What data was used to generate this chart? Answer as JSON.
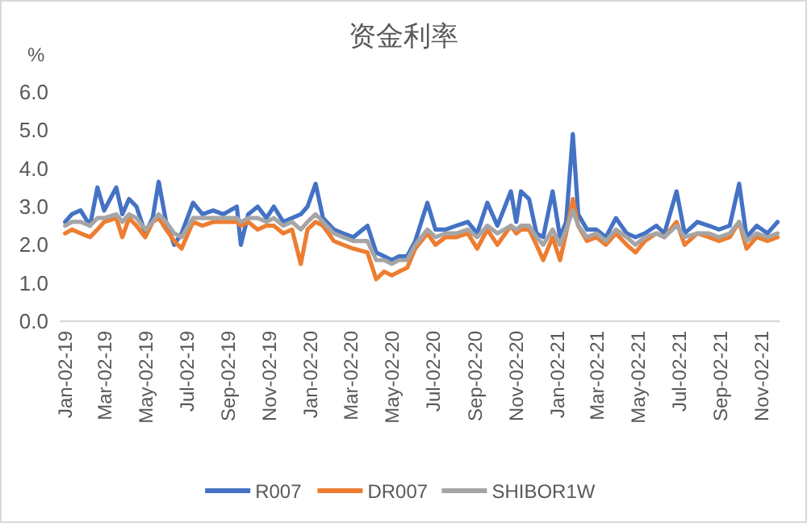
{
  "chart_data": {
    "type": "line",
    "title": "资金利率",
    "ylabel": "%",
    "x": [
      "2019-01-02",
      "2019-01-12",
      "2019-01-25",
      "2019-02-08",
      "2019-02-19",
      "2019-03-01",
      "2019-03-19",
      "2019-03-28",
      "2019-04-07",
      "2019-04-18",
      "2019-05-01",
      "2019-05-12",
      "2019-05-21",
      "2019-06-01",
      "2019-06-13",
      "2019-06-24",
      "2019-07-11",
      "2019-07-25",
      "2019-08-10",
      "2019-08-25",
      "2019-09-14",
      "2019-09-20",
      "2019-10-01",
      "2019-10-15",
      "2019-10-28",
      "2019-11-08",
      "2019-11-22",
      "2019-12-05",
      "2019-12-18",
      "2019-12-28",
      "2020-01-09",
      "2020-01-20",
      "2020-02-05",
      "2020-02-19",
      "2020-03-05",
      "2020-03-26",
      "2020-04-08",
      "2020-04-20",
      "2020-05-01",
      "2020-05-12",
      "2020-05-24",
      "2020-06-05",
      "2020-06-23",
      "2020-07-05",
      "2020-07-20",
      "2020-08-05",
      "2020-08-22",
      "2020-09-05",
      "2020-09-20",
      "2020-10-05",
      "2020-10-25",
      "2020-11-02",
      "2020-11-09",
      "2020-11-21",
      "2020-12-02",
      "2020-12-12",
      "2020-12-26",
      "2021-01-06",
      "2021-01-15",
      "2021-01-25",
      "2021-02-02",
      "2021-02-15",
      "2021-03-01",
      "2021-03-15",
      "2021-03-30",
      "2021-04-15",
      "2021-04-28",
      "2021-05-12",
      "2021-05-29",
      "2021-06-10",
      "2021-06-28",
      "2021-07-10",
      "2021-07-29",
      "2021-08-15",
      "2021-08-30",
      "2021-09-15",
      "2021-09-29",
      "2021-10-10",
      "2021-10-25",
      "2021-11-10",
      "2021-11-25"
    ],
    "series": [
      {
        "name": "R007",
        "color": "#4472c4",
        "values": [
          2.6,
          2.8,
          2.9,
          2.5,
          3.5,
          2.9,
          3.5,
          2.8,
          3.2,
          3.0,
          2.3,
          2.7,
          3.65,
          2.6,
          2.0,
          2.3,
          3.1,
          2.8,
          2.9,
          2.8,
          3.0,
          2.0,
          2.8,
          3.0,
          2.7,
          3.0,
          2.6,
          2.7,
          2.8,
          3.0,
          3.6,
          2.7,
          2.4,
          2.3,
          2.2,
          2.5,
          1.8,
          1.7,
          1.6,
          1.7,
          1.7,
          2.1,
          3.1,
          2.4,
          2.4,
          2.5,
          2.6,
          2.3,
          3.1,
          2.5,
          3.4,
          2.6,
          3.4,
          3.2,
          2.3,
          2.2,
          3.4,
          2.2,
          2.6,
          4.9,
          2.8,
          2.4,
          2.4,
          2.2,
          2.7,
          2.3,
          2.2,
          2.3,
          2.5,
          2.3,
          3.4,
          2.3,
          2.6,
          2.5,
          2.4,
          2.5,
          3.6,
          2.2,
          2.5,
          2.3,
          2.6
        ]
      },
      {
        "name": "DR007",
        "color": "#ed7d31",
        "values": [
          2.3,
          2.4,
          2.3,
          2.2,
          2.4,
          2.6,
          2.7,
          2.2,
          2.7,
          2.5,
          2.2,
          2.6,
          2.7,
          2.4,
          2.1,
          1.9,
          2.6,
          2.5,
          2.6,
          2.6,
          2.6,
          2.5,
          2.6,
          2.4,
          2.5,
          2.5,
          2.3,
          2.4,
          1.5,
          2.4,
          2.6,
          2.5,
          2.1,
          2.0,
          1.9,
          1.8,
          1.1,
          1.3,
          1.2,
          1.3,
          1.4,
          1.9,
          2.3,
          2.0,
          2.2,
          2.2,
          2.3,
          1.9,
          2.4,
          2.0,
          2.5,
          2.3,
          2.4,
          2.4,
          2.0,
          1.6,
          2.2,
          1.6,
          2.3,
          3.2,
          2.5,
          2.1,
          2.2,
          2.0,
          2.3,
          2.0,
          1.8,
          2.1,
          2.3,
          2.2,
          2.6,
          2.0,
          2.3,
          2.2,
          2.1,
          2.2,
          2.6,
          1.9,
          2.2,
          2.1,
          2.2
        ]
      },
      {
        "name": "SHIBOR1W",
        "color": "#a5a5a5",
        "values": [
          2.5,
          2.6,
          2.6,
          2.5,
          2.7,
          2.7,
          2.8,
          2.6,
          2.8,
          2.7,
          2.4,
          2.6,
          2.8,
          2.6,
          2.3,
          2.2,
          2.7,
          2.7,
          2.7,
          2.7,
          2.7,
          2.6,
          2.7,
          2.7,
          2.6,
          2.7,
          2.5,
          2.6,
          2.4,
          2.6,
          2.8,
          2.6,
          2.3,
          2.2,
          2.1,
          2.1,
          1.6,
          1.6,
          1.5,
          1.6,
          1.6,
          2.0,
          2.4,
          2.2,
          2.3,
          2.3,
          2.4,
          2.2,
          2.5,
          2.3,
          2.5,
          2.4,
          2.5,
          2.5,
          2.2,
          2.0,
          2.4,
          2.0,
          2.4,
          2.9,
          2.5,
          2.2,
          2.3,
          2.1,
          2.4,
          2.2,
          2.0,
          2.2,
          2.3,
          2.2,
          2.5,
          2.2,
          2.3,
          2.3,
          2.2,
          2.3,
          2.6,
          2.1,
          2.3,
          2.2,
          2.3
        ]
      }
    ],
    "xlim": [
      "2018-12-25",
      "2021-11-28"
    ],
    "xticks": [
      {
        "value": "2019-01-02",
        "label": "Jan-02-19"
      },
      {
        "value": "2019-03-02",
        "label": "Mar-02-19"
      },
      {
        "value": "2019-05-02",
        "label": "May-02-19"
      },
      {
        "value": "2019-07-02",
        "label": "Jul-02-19"
      },
      {
        "value": "2019-09-02",
        "label": "Sep-02-19"
      },
      {
        "value": "2019-11-02",
        "label": "Nov-02-19"
      },
      {
        "value": "2020-01-02",
        "label": "Jan-02-20"
      },
      {
        "value": "2020-03-02",
        "label": "Mar-02-20"
      },
      {
        "value": "2020-05-02",
        "label": "May-02-20"
      },
      {
        "value": "2020-07-02",
        "label": "Jul-02-20"
      },
      {
        "value": "2020-09-02",
        "label": "Sep-02-20"
      },
      {
        "value": "2020-11-02",
        "label": "Nov-02-20"
      },
      {
        "value": "2021-01-02",
        "label": "Jan-02-21"
      },
      {
        "value": "2021-03-02",
        "label": "Mar-02-21"
      },
      {
        "value": "2021-05-02",
        "label": "May-02-21"
      },
      {
        "value": "2021-07-02",
        "label": "Jul-02-21"
      },
      {
        "value": "2021-09-02",
        "label": "Sep-02-21"
      },
      {
        "value": "2021-11-02",
        "label": "Nov-02-21"
      }
    ],
    "ylim": [
      0,
      6
    ],
    "yticks": [
      {
        "value": 0,
        "label": "0.0"
      },
      {
        "value": 1,
        "label": "1.0"
      },
      {
        "value": 2,
        "label": "2.0"
      },
      {
        "value": 3,
        "label": "3.0"
      },
      {
        "value": 4,
        "label": "4.0"
      },
      {
        "value": 5,
        "label": "5.0"
      },
      {
        "value": 6,
        "label": "6.0"
      }
    ],
    "grid": false,
    "legend": "bottom",
    "line_style": "solid"
  }
}
